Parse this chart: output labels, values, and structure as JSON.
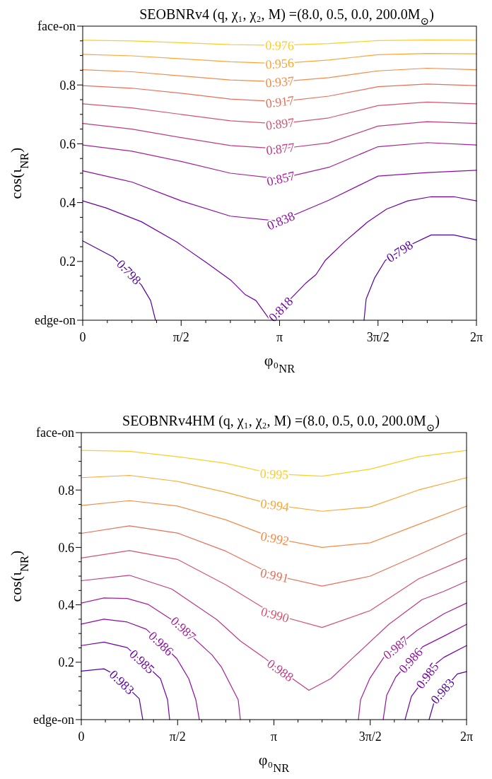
{
  "chart_data": [
    {
      "type": "line",
      "title": "SEOBNRv4 (q, χ₁, χ₂, M) =(8.0, 0.5, 0.0, 200.0M$_{⊙}$)",
      "xlabel": "φ₀$_{NR}$",
      "ylabel": "cos(ι$_{NR}$)",
      "xlim": [
        0,
        6.2832
      ],
      "ylim": [
        0,
        1
      ],
      "xticks": [
        {
          "value": 0,
          "label": "0"
        },
        {
          "value": 0.3927,
          "label": null
        },
        {
          "value": 0.7854,
          "label": null
        },
        {
          "value": 1.1781,
          "label": null
        },
        {
          "value": 1.5708,
          "label": "π/2"
        },
        {
          "value": 1.9635,
          "label": null
        },
        {
          "value": 2.3562,
          "label": null
        },
        {
          "value": 2.7489,
          "label": null
        },
        {
          "value": 3.1416,
          "label": "π"
        },
        {
          "value": 3.5343,
          "label": null
        },
        {
          "value": 3.927,
          "label": null
        },
        {
          "value": 4.3197,
          "label": null
        },
        {
          "value": 4.7124,
          "label": "3π/2"
        },
        {
          "value": 5.1051,
          "label": null
        },
        {
          "value": 5.4978,
          "label": null
        },
        {
          "value": 5.8905,
          "label": null
        },
        {
          "value": 6.2832,
          "label": "2π"
        }
      ],
      "yticks": [
        {
          "value": 0,
          "label": "edge-on"
        },
        {
          "value": 0.05,
          "label": null
        },
        {
          "value": 0.1,
          "label": null
        },
        {
          "value": 0.15,
          "label": null
        },
        0.2,
        {
          "value": 0.25,
          "label": null
        },
        {
          "value": 0.3,
          "label": null
        },
        {
          "value": 0.35,
          "label": null
        },
        0.4,
        {
          "value": 0.45,
          "label": null
        },
        {
          "value": 0.5,
          "label": null
        },
        {
          "value": 0.55,
          "label": null
        },
        0.6,
        {
          "value": 0.65,
          "label": null
        },
        {
          "value": 0.7,
          "label": null
        },
        {
          "value": 0.75,
          "label": null
        },
        0.8,
        {
          "value": 0.85,
          "label": null
        },
        {
          "value": 0.9,
          "label": null
        },
        {
          "value": 0.95,
          "label": null
        },
        {
          "value": 1,
          "label": "face-on"
        }
      ],
      "x": [
        0,
        0.785,
        1.571,
        2.356,
        3.142,
        3.927,
        4.712,
        5.498,
        6.283
      ],
      "series": [
        {
          "name": "0.976",
          "color": "#fcce25",
          "values": [
            0.952,
            0.95,
            0.944,
            0.937,
            0.935,
            0.941,
            0.951,
            0.953,
            0.952
          ]
        },
        {
          "name": "0.956",
          "color": "#fca636",
          "values": [
            0.904,
            0.899,
            0.889,
            0.879,
            0.873,
            0.885,
            0.903,
            0.907,
            0.906
          ]
        },
        {
          "name": "0.937",
          "color": "#f58b47",
          "values": [
            0.852,
            0.845,
            0.831,
            0.817,
            0.811,
            0.825,
            0.848,
            0.857,
            0.852
          ]
        },
        {
          "name": "0.917",
          "color": "#e76f5a",
          "values": [
            0.798,
            0.789,
            0.772,
            0.752,
            0.743,
            0.762,
            0.794,
            0.803,
            0.798
          ]
        },
        {
          "name": "0.897",
          "color": "#d5546e",
          "values": [
            0.736,
            0.722,
            0.7,
            0.678,
            0.668,
            0.688,
            0.73,
            0.742,
            0.736
          ]
        },
        {
          "name": "0.877",
          "color": "#c13b82",
          "values": [
            0.669,
            0.65,
            0.621,
            0.594,
            0.583,
            0.603,
            0.66,
            0.675,
            0.669
          ]
        },
        {
          "name": "0.857",
          "color": "#a62098",
          "values": [
            0.596,
            0.575,
            0.54,
            0.5,
            0.481,
            0.52,
            0.59,
            0.604,
            0.596
          ]
        },
        {
          "name": "0.838",
          "color": "#8d0ca5",
          "values": [
            0.508,
            0.47,
            0.406,
            0.354,
            0.337,
            0.408,
            0.49,
            0.502,
            0.51
          ]
        },
        {
          "name": "0.818",
          "color": "#7201a8",
          "x": [
            0,
            0.372,
            0.936,
            1.5,
            1.974,
            2.369,
            2.594,
            2.764,
            2.967,
            3.079,
            3.564,
            3.722,
            3.869,
            4.174,
            4.546,
            4.85,
            5.189,
            5.561,
            5.922,
            6.283
          ],
          "values": [
            0.406,
            0.382,
            0.335,
            0.266,
            0.196,
            0.135,
            0.087,
            0.067,
            0.007,
            0.02,
            0.127,
            0.155,
            0.203,
            0.266,
            0.334,
            0.378,
            0.406,
            0.42,
            0.42,
            0.406
          ]
        },
        {
          "name": "0.798",
          "color": "#5302a3",
          "x": [
            0,
            0.485,
            0.711,
            0.936,
            1.083,
            1.162
          ],
          "values": [
            0.27,
            0.215,
            0.17,
            0.12,
            0.067,
            0
          ]
        },
        {
          "name": "0.798",
          "color": "#5302a3",
          "x": [
            4.489,
            4.523,
            4.659,
            4.828,
            5.166,
            5.561,
            5.922,
            6.283
          ],
          "values": [
            0,
            0.072,
            0.144,
            0.203,
            0.25,
            0.29,
            0.29,
            0.273
          ]
        }
      ]
    },
    {
      "type": "line",
      "title": "SEOBNRv4HM (q, χ₁, χ₂, M) =(8.0, 0.5, 0.0, 200.0M$_{⊙}$)",
      "xlabel": "φ₀$_{NR}$",
      "ylabel": "cos(ι$_{NR}$)",
      "xlim": [
        0,
        6.2832
      ],
      "ylim": [
        0,
        1
      ],
      "xticks": [
        {
          "value": 0,
          "label": "0"
        },
        {
          "value": 0.3927,
          "label": null
        },
        {
          "value": 0.7854,
          "label": null
        },
        {
          "value": 1.1781,
          "label": null
        },
        {
          "value": 1.5708,
          "label": "π/2"
        },
        {
          "value": 1.9635,
          "label": null
        },
        {
          "value": 2.3562,
          "label": null
        },
        {
          "value": 2.7489,
          "label": null
        },
        {
          "value": 3.1416,
          "label": "π"
        },
        {
          "value": 3.5343,
          "label": null
        },
        {
          "value": 3.927,
          "label": null
        },
        {
          "value": 4.3197,
          "label": null
        },
        {
          "value": 4.7124,
          "label": "3π/2"
        },
        {
          "value": 5.1051,
          "label": null
        },
        {
          "value": 5.4978,
          "label": null
        },
        {
          "value": 5.8905,
          "label": null
        },
        {
          "value": 6.2832,
          "label": "2π"
        }
      ],
      "yticks": [
        {
          "value": 0,
          "label": "edge-on"
        },
        {
          "value": 0.05,
          "label": null
        },
        {
          "value": 0.1,
          "label": null
        },
        {
          "value": 0.15,
          "label": null
        },
        0.2,
        {
          "value": 0.25,
          "label": null
        },
        {
          "value": 0.3,
          "label": null
        },
        {
          "value": 0.35,
          "label": null
        },
        0.4,
        {
          "value": 0.45,
          "label": null
        },
        {
          "value": 0.5,
          "label": null
        },
        {
          "value": 0.55,
          "label": null
        },
        0.6,
        {
          "value": 0.65,
          "label": null
        },
        {
          "value": 0.7,
          "label": null
        },
        {
          "value": 0.75,
          "label": null
        },
        0.8,
        {
          "value": 0.85,
          "label": null
        },
        {
          "value": 0.9,
          "label": null
        },
        {
          "value": 0.95,
          "label": null
        },
        {
          "value": 1,
          "label": "face-on"
        }
      ],
      "x": [
        0,
        0.785,
        1.571,
        2.356,
        3.142,
        3.927,
        4.712,
        5.498,
        6.283
      ],
      "series": [
        {
          "name": "0.995",
          "color": "#fcce25",
          "values": [
            0.938,
            0.935,
            0.916,
            0.893,
            0.856,
            0.848,
            0.873,
            0.916,
            0.938
          ]
        },
        {
          "name": "0.994",
          "color": "#fca636",
          "values": [
            0.843,
            0.851,
            0.83,
            0.792,
            0.748,
            0.726,
            0.741,
            0.8,
            0.843
          ]
        },
        {
          "name": "0.992",
          "color": "#f58b47",
          "values": [
            0.746,
            0.763,
            0.744,
            0.696,
            0.632,
            0.6,
            0.616,
            0.68,
            0.744
          ]
        },
        {
          "name": "0.991",
          "color": "#e76f5a",
          "values": [
            0.649,
            0.675,
            0.65,
            0.587,
            0.503,
            0.465,
            0.5,
            0.574,
            0.649
          ]
        },
        {
          "name": "0.990",
          "color": "#d5546e",
          "values": [
            0.563,
            0.589,
            0.558,
            0.47,
            0.367,
            0.321,
            0.38,
            0.49,
            0.562
          ]
        },
        {
          "name": "0.988",
          "color": "#c13b82",
          "x": [
            0,
            0.784,
            1.476,
            2.214,
            2.594,
            2.974,
            3.17,
            3.712,
            4.07,
            4.439,
            5.015,
            5.557,
            5.914,
            6.283
          ],
          "values": [
            0.484,
            0.503,
            0.455,
            0.348,
            0.274,
            0.217,
            0.184,
            0.102,
            0.143,
            0.217,
            0.332,
            0.418,
            0.447,
            0.482
          ]
        },
        {
          "name": "0.987",
          "color": "#a62098",
          "x": [
            0,
            0.369,
            0.749,
            1.095,
            1.476,
            1.591,
            2.133,
            2.283,
            2.559,
            2.594
          ],
          "values": [
            0.406,
            0.424,
            0.422,
            0.401,
            0.348,
            0.332,
            0.225,
            0.184,
            0.069,
            0
          ]
        },
        {
          "name": "0.987",
          "color": "#a62098",
          "x": [
            4.519,
            4.554,
            4.704,
            4.934,
            5.476,
            5.914,
            6.283
          ],
          "values": [
            0,
            0.069,
            0.143,
            0.217,
            0.311,
            0.369,
            0.406
          ]
        },
        {
          "name": "0.986",
          "color": "#8d0ca5",
          "x": [
            0,
            0.369,
            0.749,
            1.061,
            1.556,
            1.752,
            1.868,
            1.925
          ],
          "values": [
            0.333,
            0.35,
            0.34,
            0.315,
            0.213,
            0.143,
            0.069,
            0
          ]
        },
        {
          "name": "0.986",
          "color": "#8d0ca5",
          "x": [
            4.923,
            4.981,
            5.13,
            5.569,
            5.914,
            6.283
          ],
          "values": [
            0,
            0.085,
            0.149,
            0.254,
            0.291,
            0.332
          ]
        },
        {
          "name": "0.985",
          "color": "#7201a8",
          "x": [
            0,
            0.369,
            0.749,
            1.291,
            1.407,
            1.441
          ],
          "values": [
            0.258,
            0.27,
            0.251,
            0.143,
            0.069,
            0
          ]
        },
        {
          "name": "0.985",
          "color": "#7201a8",
          "x": [
            5.28,
            5.384,
            5.788,
            5.914,
            6.283
          ],
          "values": [
            0,
            0.081,
            0.196,
            0.217,
            0.258
          ]
        },
        {
          "name": "0.983",
          "color": "#5302a3",
          "x": [
            0,
            0.369,
            0.519,
            0.945,
            1.003
          ],
          "values": [
            0.169,
            0.177,
            0.16,
            0.073,
            0
          ]
        },
        {
          "name": "0.983",
          "color": "#5302a3",
          "x": [
            5.672,
            5.765,
            6.133,
            6.283
          ],
          "values": [
            0,
            0.069,
            0.159,
            0.167
          ]
        }
      ]
    }
  ]
}
